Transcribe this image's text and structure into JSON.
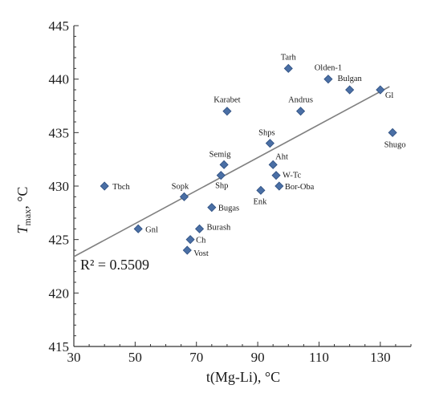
{
  "chart_data": {
    "type": "scatter",
    "xlabel": "t(Mg-Li), °C",
    "ylabel_main": "T",
    "ylabel_sub": "max",
    "ylabel_unit": ", °C",
    "xlim": [
      30,
      140
    ],
    "ylim": [
      415,
      445
    ],
    "xticks": [
      30,
      50,
      70,
      90,
      110,
      130
    ],
    "yticks": [
      415,
      420,
      425,
      430,
      435,
      440,
      445
    ],
    "grid": false,
    "marker_color": "#4a6fa5",
    "marker_edge_color": "#2e4f80",
    "trend_color": "#808080",
    "points": [
      {
        "label": "Tarh",
        "x": 100,
        "y": 441
      },
      {
        "label": "Olden-1",
        "x": 113,
        "y": 440
      },
      {
        "label": "Bulgan",
        "x": 120,
        "y": 439
      },
      {
        "label": "Gl",
        "x": 130,
        "y": 439
      },
      {
        "label": "Karabet",
        "x": 80,
        "y": 437
      },
      {
        "label": "Andrus",
        "x": 104,
        "y": 437
      },
      {
        "label": "Shugo",
        "x": 134,
        "y": 435
      },
      {
        "label": "Shps",
        "x": 94,
        "y": 434
      },
      {
        "label": "Semig",
        "x": 79,
        "y": 432
      },
      {
        "label": "Aht",
        "x": 95,
        "y": 432
      },
      {
        "label": "Shp",
        "x": 78,
        "y": 431
      },
      {
        "label": "W-Tc",
        "x": 96,
        "y": 431
      },
      {
        "label": "Tbch",
        "x": 40,
        "y": 430
      },
      {
        "label": "Bor-Oba",
        "x": 97,
        "y": 430
      },
      {
        "label": "Enk",
        "x": 91,
        "y": 429.6
      },
      {
        "label": "Sopk",
        "x": 66,
        "y": 429
      },
      {
        "label": "Bugas",
        "x": 75,
        "y": 428
      },
      {
        "label": "Gnl",
        "x": 51,
        "y": 426
      },
      {
        "label": "Burash",
        "x": 71,
        "y": 426
      },
      {
        "label": "Ch",
        "x": 68,
        "y": 425
      },
      {
        "label": "Vost",
        "x": 67,
        "y": 424
      }
    ],
    "trendline": {
      "x": [
        30,
        133
      ],
      "y": [
        423.4,
        439.3
      ]
    },
    "annotation": {
      "r2_text": "R² = 0.5509"
    }
  }
}
